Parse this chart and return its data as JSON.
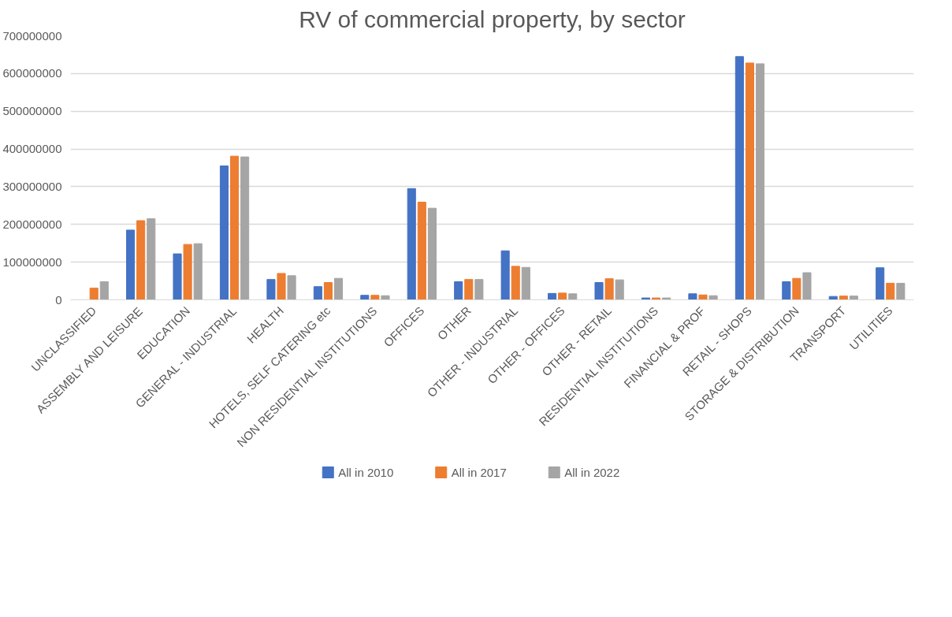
{
  "chart_data": {
    "type": "bar",
    "title": "RV of commercial property, by sector",
    "categories": [
      "UNCLASSIFIED",
      "ASSEMBLY AND LEISURE",
      "EDUCATION",
      "GENERAL - INDUSTRIAL",
      "HEALTH",
      "HOTELS, SELF CATERING etc",
      "NON RESIDENTIAL INSTITUTIONS",
      "OFFICES",
      "OTHER",
      "OTHER - INDUSTRIAL",
      "OTHER - OFFICES",
      "OTHER - RETAIL",
      "RESIDENTIAL INSTITUTIONS",
      "FINANCIAL & PROF",
      "RETAIL - SHOPS",
      "STORAGE & DISTRIBUTION",
      "TRANSPORT",
      "UTILITIES"
    ],
    "series": [
      {
        "name": "All in 2010",
        "color": "#4472c4",
        "values": [
          null,
          185000000,
          122000000,
          355000000,
          54000000,
          35000000,
          12000000,
          295000000,
          48000000,
          130000000,
          17000000,
          46000000,
          5000000,
          16000000,
          645000000,
          48000000,
          9000000,
          85000000
        ]
      },
      {
        "name": "All in 2017",
        "color": "#ed7d31",
        "values": [
          31000000,
          210000000,
          147000000,
          381000000,
          70000000,
          46000000,
          12000000,
          259000000,
          54000000,
          89000000,
          18000000,
          56000000,
          5000000,
          13000000,
          628000000,
          57000000,
          10000000,
          44000000
        ]
      },
      {
        "name": "All in 2022",
        "color": "#a5a5a5",
        "values": [
          48000000,
          215000000,
          149000000,
          379000000,
          64000000,
          57000000,
          11000000,
          243000000,
          54000000,
          86000000,
          16000000,
          53000000,
          5000000,
          11000000,
          626000000,
          72000000,
          10000000,
          44000000
        ]
      }
    ],
    "ylim": [
      0,
      700000000
    ],
    "yticks": [
      0,
      100000000,
      200000000,
      300000000,
      400000000,
      500000000,
      600000000,
      700000000
    ],
    "grid": "y",
    "legend": "bottom"
  }
}
